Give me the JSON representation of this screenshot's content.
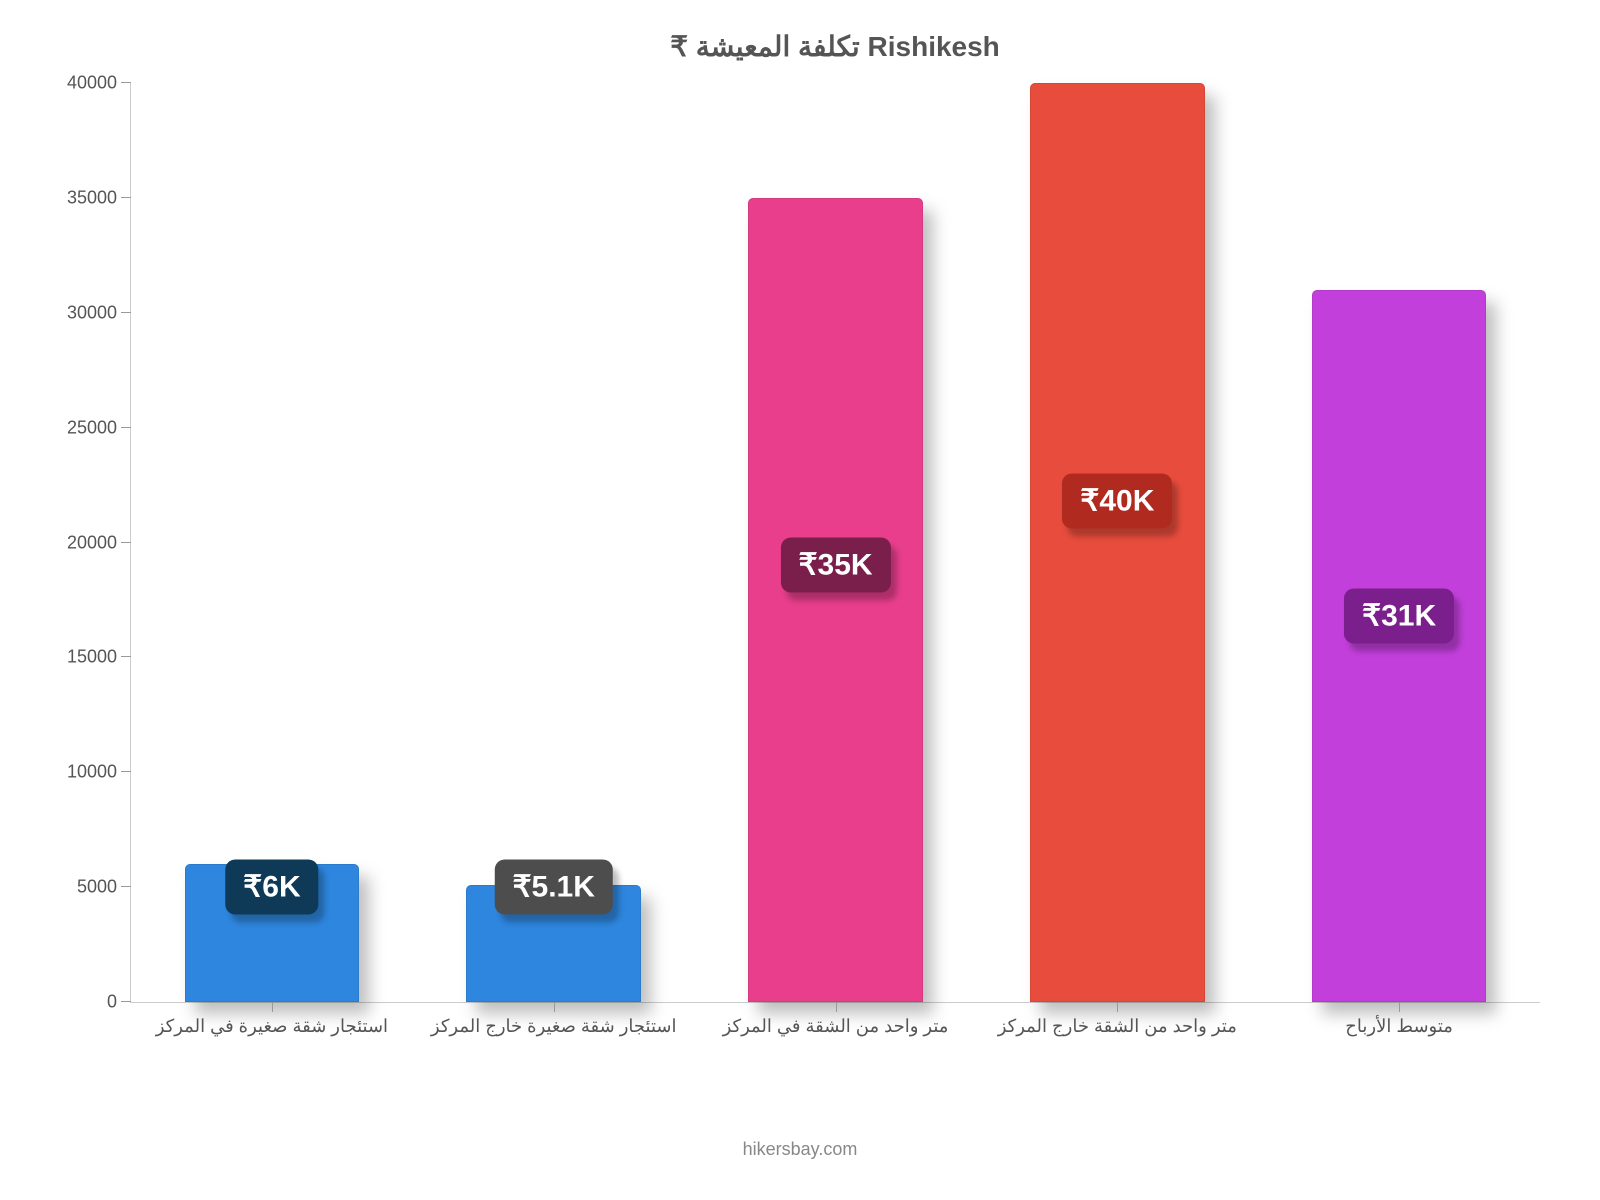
{
  "chart": {
    "type": "bar",
    "title": "₹ تكلفة المعيشة Rishikesh",
    "title_fontsize": 28,
    "title_color": "#555555",
    "background_color": "#ffffff",
    "ylim": [
      0,
      40000
    ],
    "ytick_step": 5000,
    "ytick_labels": [
      "0",
      "5000",
      "10000",
      "15000",
      "20000",
      "25000",
      "30000",
      "35000",
      "40000"
    ],
    "y_axis_color": "#cccccc",
    "y_tick_color": "#999999",
    "y_label_color": "#555555",
    "y_label_fontsize": 18,
    "x_label_color": "#555555",
    "x_label_fontsize": 18,
    "bar_width_ratio": 0.62,
    "bar_border_radius": 5,
    "shadow_color": "rgba(0,0,0,0.25)",
    "categories": [
      "استئجار شقة صغيرة في المركز",
      "استئجار شقة صغيرة خارج المركز",
      "متر واحد من الشقة في المركز",
      "متر واحد من الشقة خارج المركز",
      "متوسط الأرباح"
    ],
    "values": [
      6000,
      5100,
      35000,
      40000,
      31000
    ],
    "bar_colors": [
      "#2e86de",
      "#2e86de",
      "#e83e8c",
      "#e74c3c",
      "#c23fdb"
    ],
    "value_labels": [
      "₹6K",
      "₹5.1K",
      "₹35K",
      "₹40K",
      "₹31K"
    ],
    "badge_colors": [
      "#0f3a57",
      "#4d4d4d",
      "#7a1f4c",
      "#b02a1f",
      "#7a1f8c"
    ],
    "badge_text_color": "#ffffff",
    "badge_fontsize": 30,
    "badge_y_positions": [
      5000,
      5000,
      19000,
      21800,
      16800
    ],
    "footer_text": "hikersbay.com",
    "footer_color": "#888888",
    "footer_fontsize": 18
  }
}
